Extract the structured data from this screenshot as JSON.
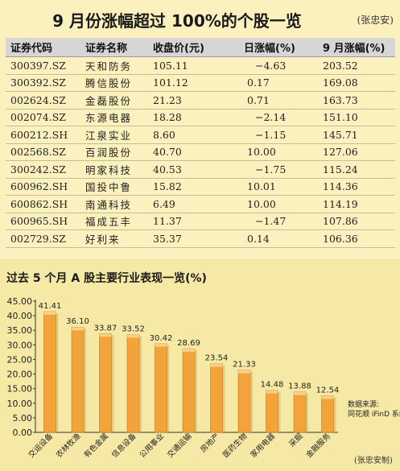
{
  "title": "9 月份涨幅超过 100%的个股一览",
  "credit_top": "(张忠安)",
  "table": {
    "headers": [
      "证券代码",
      "证券名称",
      "收盘价(元)",
      "日涨幅(%)",
      "9 月涨幅(%)"
    ],
    "rows": [
      [
        "300397.SZ",
        "天和防务",
        "105.11",
        "−4.63",
        "203.52"
      ],
      [
        "300392.SZ",
        "腾信股份",
        "101.12",
        "0.17",
        "169.08"
      ],
      [
        "002624.SZ",
        "金磊股份",
        "21.23",
        "0.71",
        "163.73"
      ],
      [
        "002074.SZ",
        "东源电器",
        "18.28",
        "−2.14",
        "151.10"
      ],
      [
        "600212.SH",
        "江泉实业",
        "8.60",
        "−1.15",
        "145.71"
      ],
      [
        "002568.SZ",
        "百润股份",
        "40.70",
        "10.00",
        "127.06"
      ],
      [
        "300242.SZ",
        "明家科技",
        "40.53",
        "−1.75",
        "115.24"
      ],
      [
        "600962.SH",
        "国投中鲁",
        "15.82",
        "10.01",
        "114.36"
      ],
      [
        "600862.SH",
        "南通科技",
        "6.49",
        "10.00",
        "114.19"
      ],
      [
        "600965.SH",
        "福成五丰",
        "11.37",
        "−1.47",
        "107.86"
      ],
      [
        "002729.SZ",
        "好利来",
        "35.37",
        "0.14",
        "106.36"
      ]
    ]
  },
  "chart_title": "过去 5 个月 A 股主要行业表现一览(%)",
  "chart_data": {
    "type": "bar",
    "categories": [
      "交运设备",
      "农林牧渔",
      "有色金属",
      "信息设备",
      "公用事业",
      "交通运输",
      "房地产",
      "医药生物",
      "家用电器",
      "采掘",
      "金融服务"
    ],
    "values": [
      41.41,
      36.1,
      33.87,
      33.52,
      30.42,
      28.69,
      23.54,
      21.33,
      14.48,
      13.88,
      12.54
    ],
    "ylim": [
      0,
      45
    ],
    "yticks": [
      "45.00",
      "40.00",
      "35.00",
      "30.00",
      "25.00",
      "20.00",
      "15.00",
      "10.00",
      "5.00",
      "0.00"
    ],
    "grid": false,
    "bar_color": "#f2a33a",
    "source": [
      "数据来源:",
      "同花顺 iFinD 系统"
    ],
    "credit": "(张忠安制)"
  }
}
